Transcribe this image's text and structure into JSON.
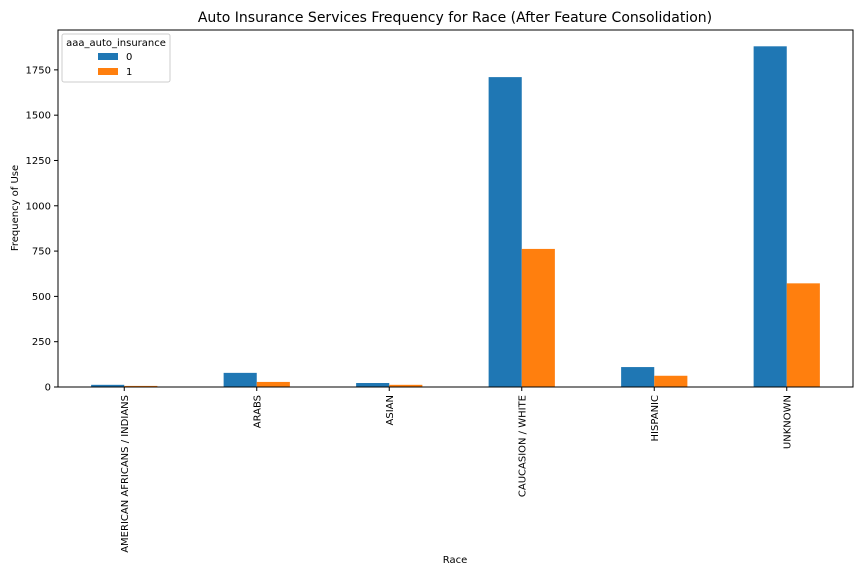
{
  "chart_data": {
    "type": "bar",
    "title": "Auto Insurance Services Frequency for Race (After Feature Consolidation)",
    "xlabel": "Race",
    "ylabel": "Frequency of Use",
    "categories": [
      "AMERICAN AFRICANS / INDIANS",
      "ARABS",
      "ASIAN",
      "CAUCASION / WHITE",
      "HISPANIC",
      "UNKNOWN"
    ],
    "series": [
      {
        "name": "0",
        "color": "#1f77b4",
        "values": [
          12,
          78,
          22,
          1710,
          110,
          1880
        ]
      },
      {
        "name": "1",
        "color": "#ff7f0e",
        "values": [
          6,
          28,
          12,
          762,
          62,
          572
        ]
      }
    ],
    "ylim": [
      0,
      1970
    ],
    "yticks": [
      0,
      250,
      500,
      750,
      1000,
      1250,
      1500,
      1750
    ],
    "grid": false,
    "legend": {
      "title": "aaa_auto_insurance",
      "placement": "top-left"
    }
  }
}
